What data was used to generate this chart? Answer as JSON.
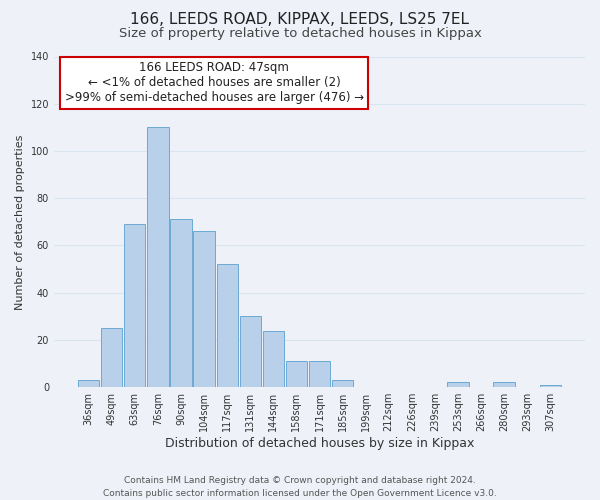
{
  "title": "166, LEEDS ROAD, KIPPAX, LEEDS, LS25 7EL",
  "subtitle": "Size of property relative to detached houses in Kippax",
  "xlabel": "Distribution of detached houses by size in Kippax",
  "ylabel": "Number of detached properties",
  "bar_labels": [
    "36sqm",
    "49sqm",
    "63sqm",
    "76sqm",
    "90sqm",
    "104sqm",
    "117sqm",
    "131sqm",
    "144sqm",
    "158sqm",
    "171sqm",
    "185sqm",
    "199sqm",
    "212sqm",
    "226sqm",
    "239sqm",
    "253sqm",
    "266sqm",
    "280sqm",
    "293sqm",
    "307sqm"
  ],
  "bar_values": [
    3,
    25,
    69,
    110,
    71,
    66,
    52,
    30,
    24,
    11,
    11,
    3,
    0,
    0,
    0,
    0,
    2,
    0,
    2,
    0,
    1
  ],
  "bar_color": "#b8d0ea",
  "bar_edge_color": "#6aaad4",
  "annotation_box_text": "166 LEEDS ROAD: 47sqm\n← <1% of detached houses are smaller (2)\n>99% of semi-detached houses are larger (476) →",
  "annotation_box_edge_color": "#cc0000",
  "annotation_box_fill": "#ffffff",
  "ylim": [
    0,
    140
  ],
  "yticks": [
    0,
    20,
    40,
    60,
    80,
    100,
    120,
    140
  ],
  "footer_text": "Contains HM Land Registry data © Crown copyright and database right 2024.\nContains public sector information licensed under the Open Government Licence v3.0.",
  "bg_color": "#eef2f8",
  "grid_color": "#d8e4f0",
  "title_fontsize": 11,
  "subtitle_fontsize": 9.5,
  "xlabel_fontsize": 9,
  "ylabel_fontsize": 8,
  "tick_fontsize": 7,
  "annotation_fontsize": 8.5,
  "footer_fontsize": 6.5
}
